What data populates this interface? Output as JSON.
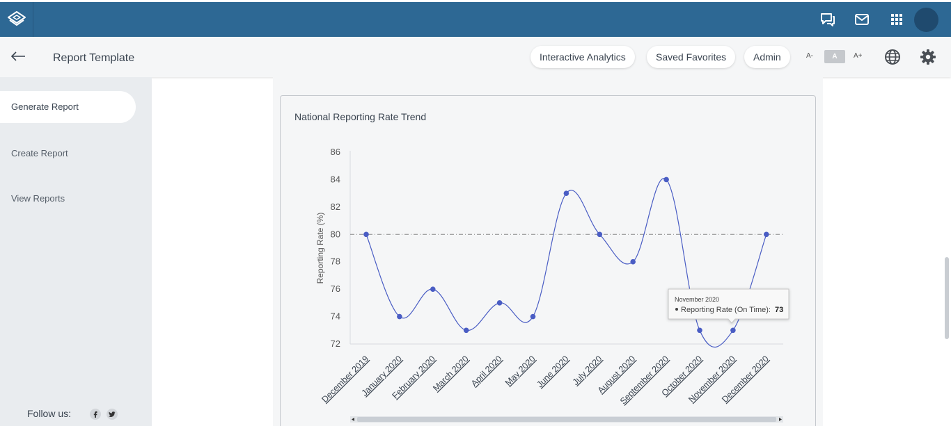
{
  "app": {
    "colors": {
      "topbar": "#2d6894",
      "accent": "#4a5dc4",
      "sidebar": "#e9ecef"
    }
  },
  "topbar": {
    "icons": [
      "layers-logo-icon",
      "chat-icon",
      "mail-icon",
      "apps-grid-icon",
      "avatar"
    ]
  },
  "header": {
    "title": "Report Template",
    "pills": [
      "Interactive Analytics",
      "Saved Favorites",
      "Admin"
    ],
    "font_controls": {
      "decrease": "A-",
      "normal": "A",
      "increase": "A+"
    }
  },
  "sidebar": {
    "items": [
      {
        "label": "Generate Report",
        "active": true
      },
      {
        "label": "Create Report",
        "active": false
      },
      {
        "label": "View Reports",
        "active": false
      }
    ],
    "follow_label": "Follow us:",
    "social": [
      "facebook-icon",
      "twitter-icon"
    ]
  },
  "chart_data": {
    "type": "line",
    "title": "National Reporting Rate Trend",
    "ylabel": "Reporting Rate (%)",
    "xlabel": "",
    "ylim": [
      72,
      86
    ],
    "yticks": [
      72,
      74,
      76,
      78,
      80,
      82,
      84,
      86
    ],
    "categories": [
      "December 2019",
      "January 2020",
      "February 2020",
      "March 2020",
      "April 2020",
      "May 2020",
      "June 2020",
      "July 2020",
      "August 2020",
      "September 2020",
      "October 2020",
      "November 2020",
      "December 2020"
    ],
    "series": [
      {
        "values": [
          80,
          74,
          76,
          73,
          75,
          74,
          83,
          80,
          78,
          84,
          73,
          73,
          80
        ]
      }
    ],
    "target_line": 80,
    "grid": false,
    "tooltip": {
      "title": "November 2020",
      "series_label": "Reporting Rate (On Time):",
      "value": "73"
    }
  }
}
